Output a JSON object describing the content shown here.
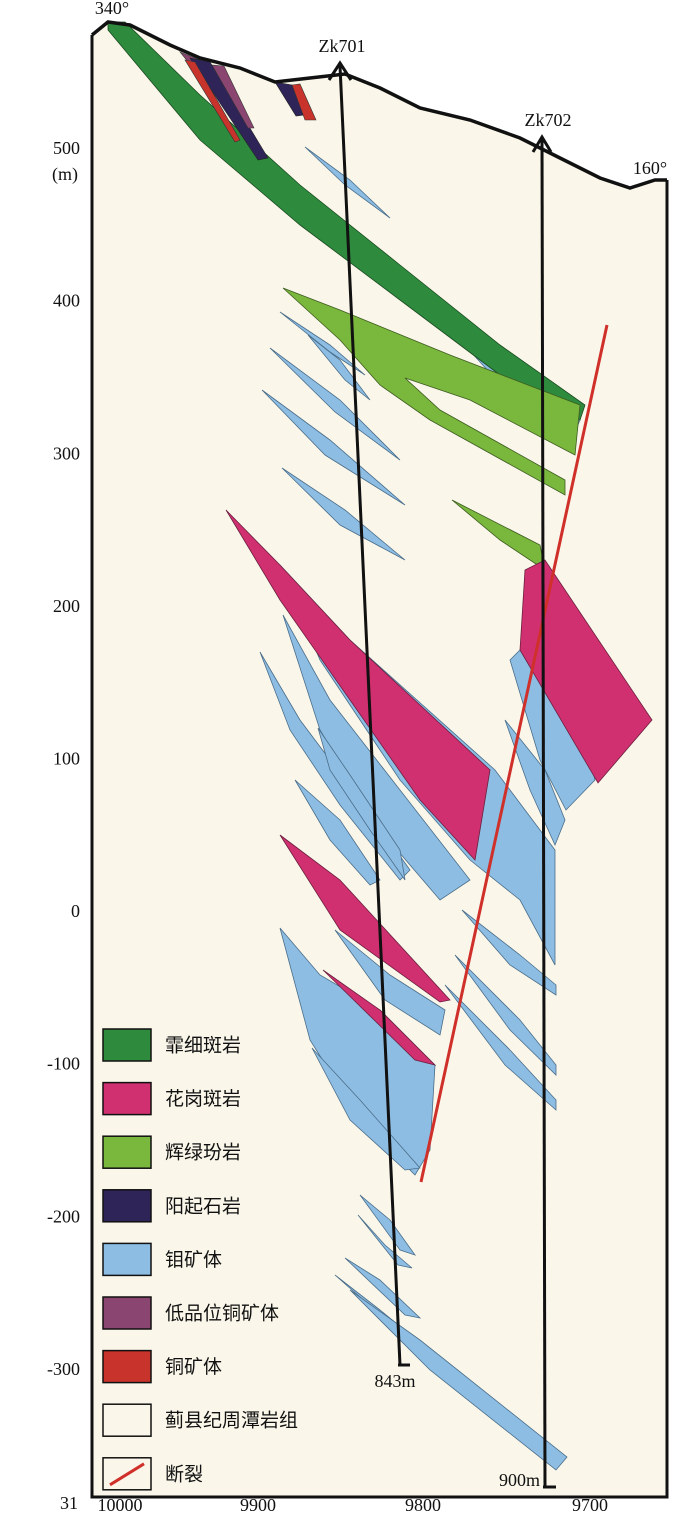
{
  "orientation": {
    "left": "340°",
    "right": "160°"
  },
  "y_axis": {
    "unit": "(m)",
    "ticks": [
      "500",
      "400",
      "300",
      "200",
      "100",
      "0",
      "-100",
      "-200",
      "-300"
    ],
    "corner": "31"
  },
  "x_axis": {
    "ticks": [
      "10000",
      "9900",
      "9800",
      "9700"
    ]
  },
  "drill_holes": [
    {
      "name": "Zk701",
      "depth": "843m"
    },
    {
      "name": "Zk702",
      "depth": "900m"
    }
  ],
  "legend": [
    "霏细斑岩",
    "花岗斑岩",
    "辉绿玢岩",
    "阳起石岩",
    "钼矿体",
    "低品位铜矿体",
    "铜矿体",
    "蓟县纪周潭岩组",
    "断裂"
  ]
}
